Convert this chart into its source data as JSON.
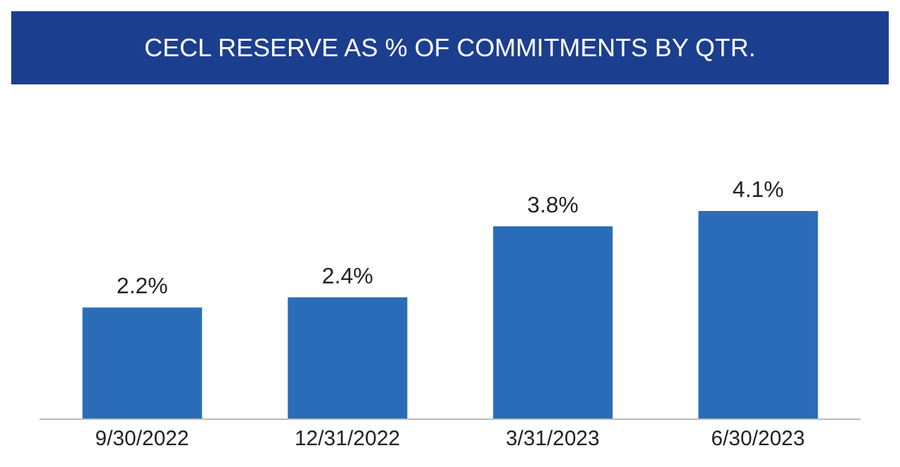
{
  "chart_data": {
    "type": "bar",
    "title": "CECL RESERVE AS % OF COMMITMENTS BY QTR.",
    "categories": [
      "9/30/2022",
      "12/31/2022",
      "3/31/2023",
      "6/30/2023"
    ],
    "values": [
      2.2,
      2.4,
      3.8,
      4.1
    ],
    "value_labels": [
      "2.2%",
      "2.4%",
      "3.8%",
      "4.1%"
    ],
    "color": "#2b6cb8"
  }
}
